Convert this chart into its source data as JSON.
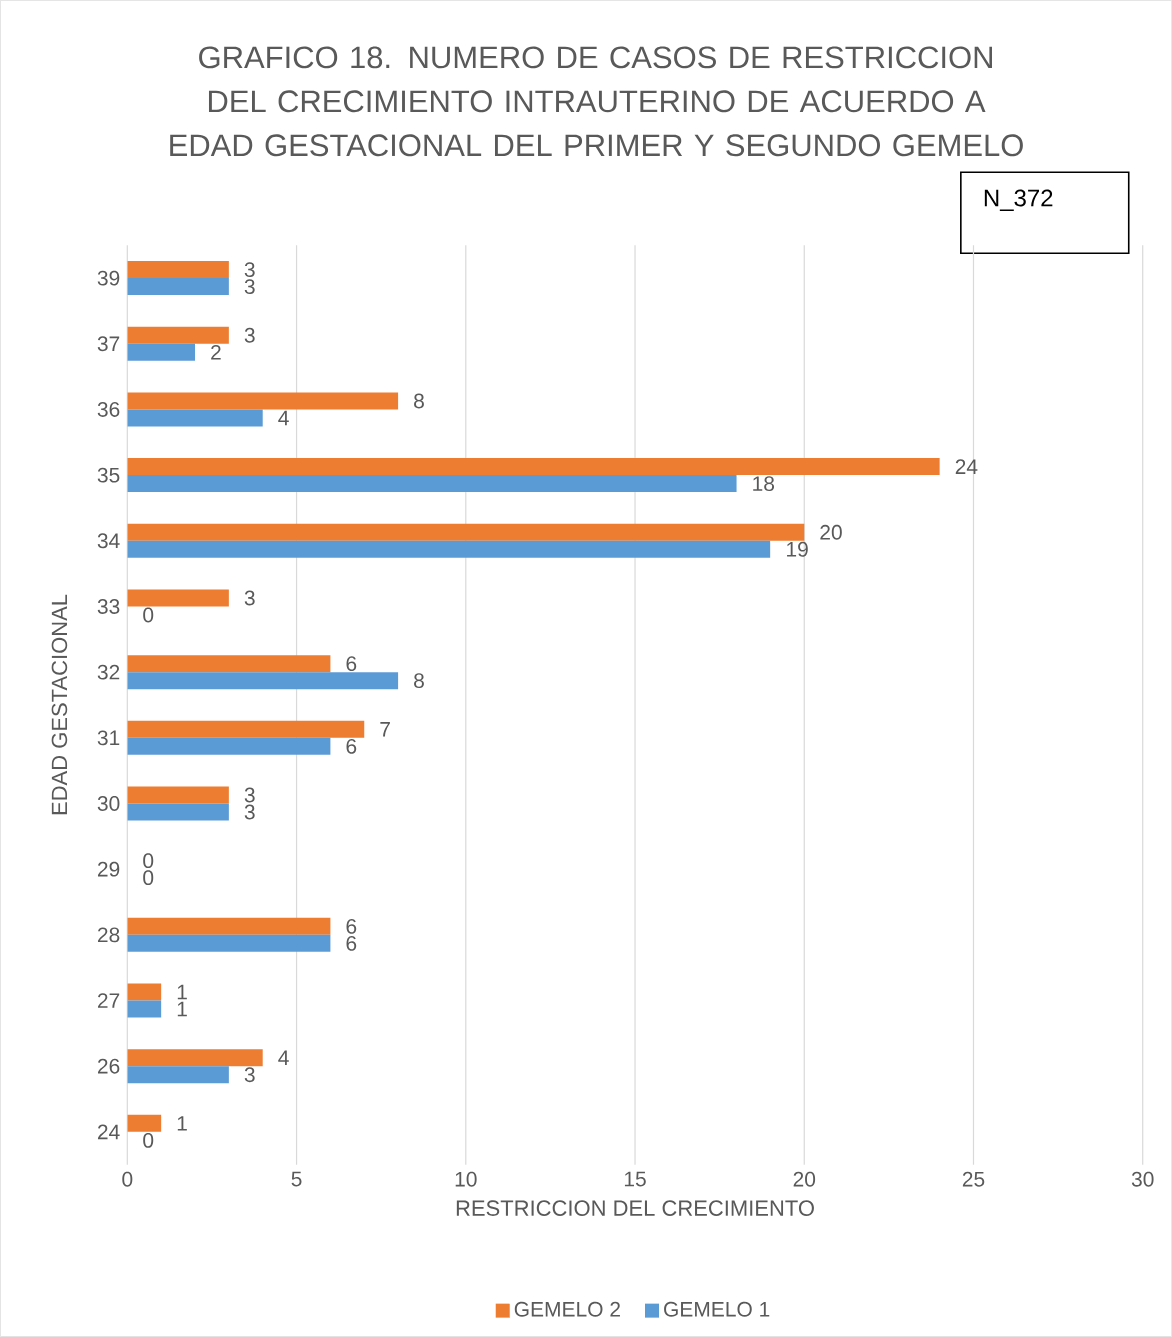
{
  "chart_data": {
    "type": "bar",
    "orientation": "horizontal",
    "title": "GRAFICO 18. NUMERO DE CASOS DE RESTRICCION DEL CRECIMIENTO INTRAUTERINO DE ACUERDO A EDAD GESTACIONAL DEL PRIMER Y SEGUNDO GEMELO",
    "xlabel": "RESTRICCION DEL CRECIMIENTO",
    "ylabel": "EDAD GESTACIONAL",
    "annotations": [
      "N_372"
    ],
    "categories": [
      "39",
      "37",
      "36",
      "35",
      "34",
      "33",
      "32",
      "31",
      "30",
      "29",
      "28",
      "27",
      "26",
      "24"
    ],
    "series": [
      {
        "name": "GEMELO 2",
        "color": "#ed7d31",
        "values": [
          3,
          3,
          8,
          24,
          20,
          3,
          6,
          7,
          3,
          0,
          6,
          1,
          4,
          1
        ]
      },
      {
        "name": "GEMELO 1",
        "color": "#5b9bd5",
        "values": [
          3,
          2,
          4,
          18,
          19,
          0,
          8,
          6,
          3,
          0,
          6,
          1,
          3,
          0
        ]
      }
    ],
    "xlim": [
      0,
      30
    ],
    "xticks": [
      0,
      5,
      10,
      15,
      20,
      25,
      30
    ],
    "grid": "x",
    "legend": "bottom",
    "data_labels": true
  }
}
